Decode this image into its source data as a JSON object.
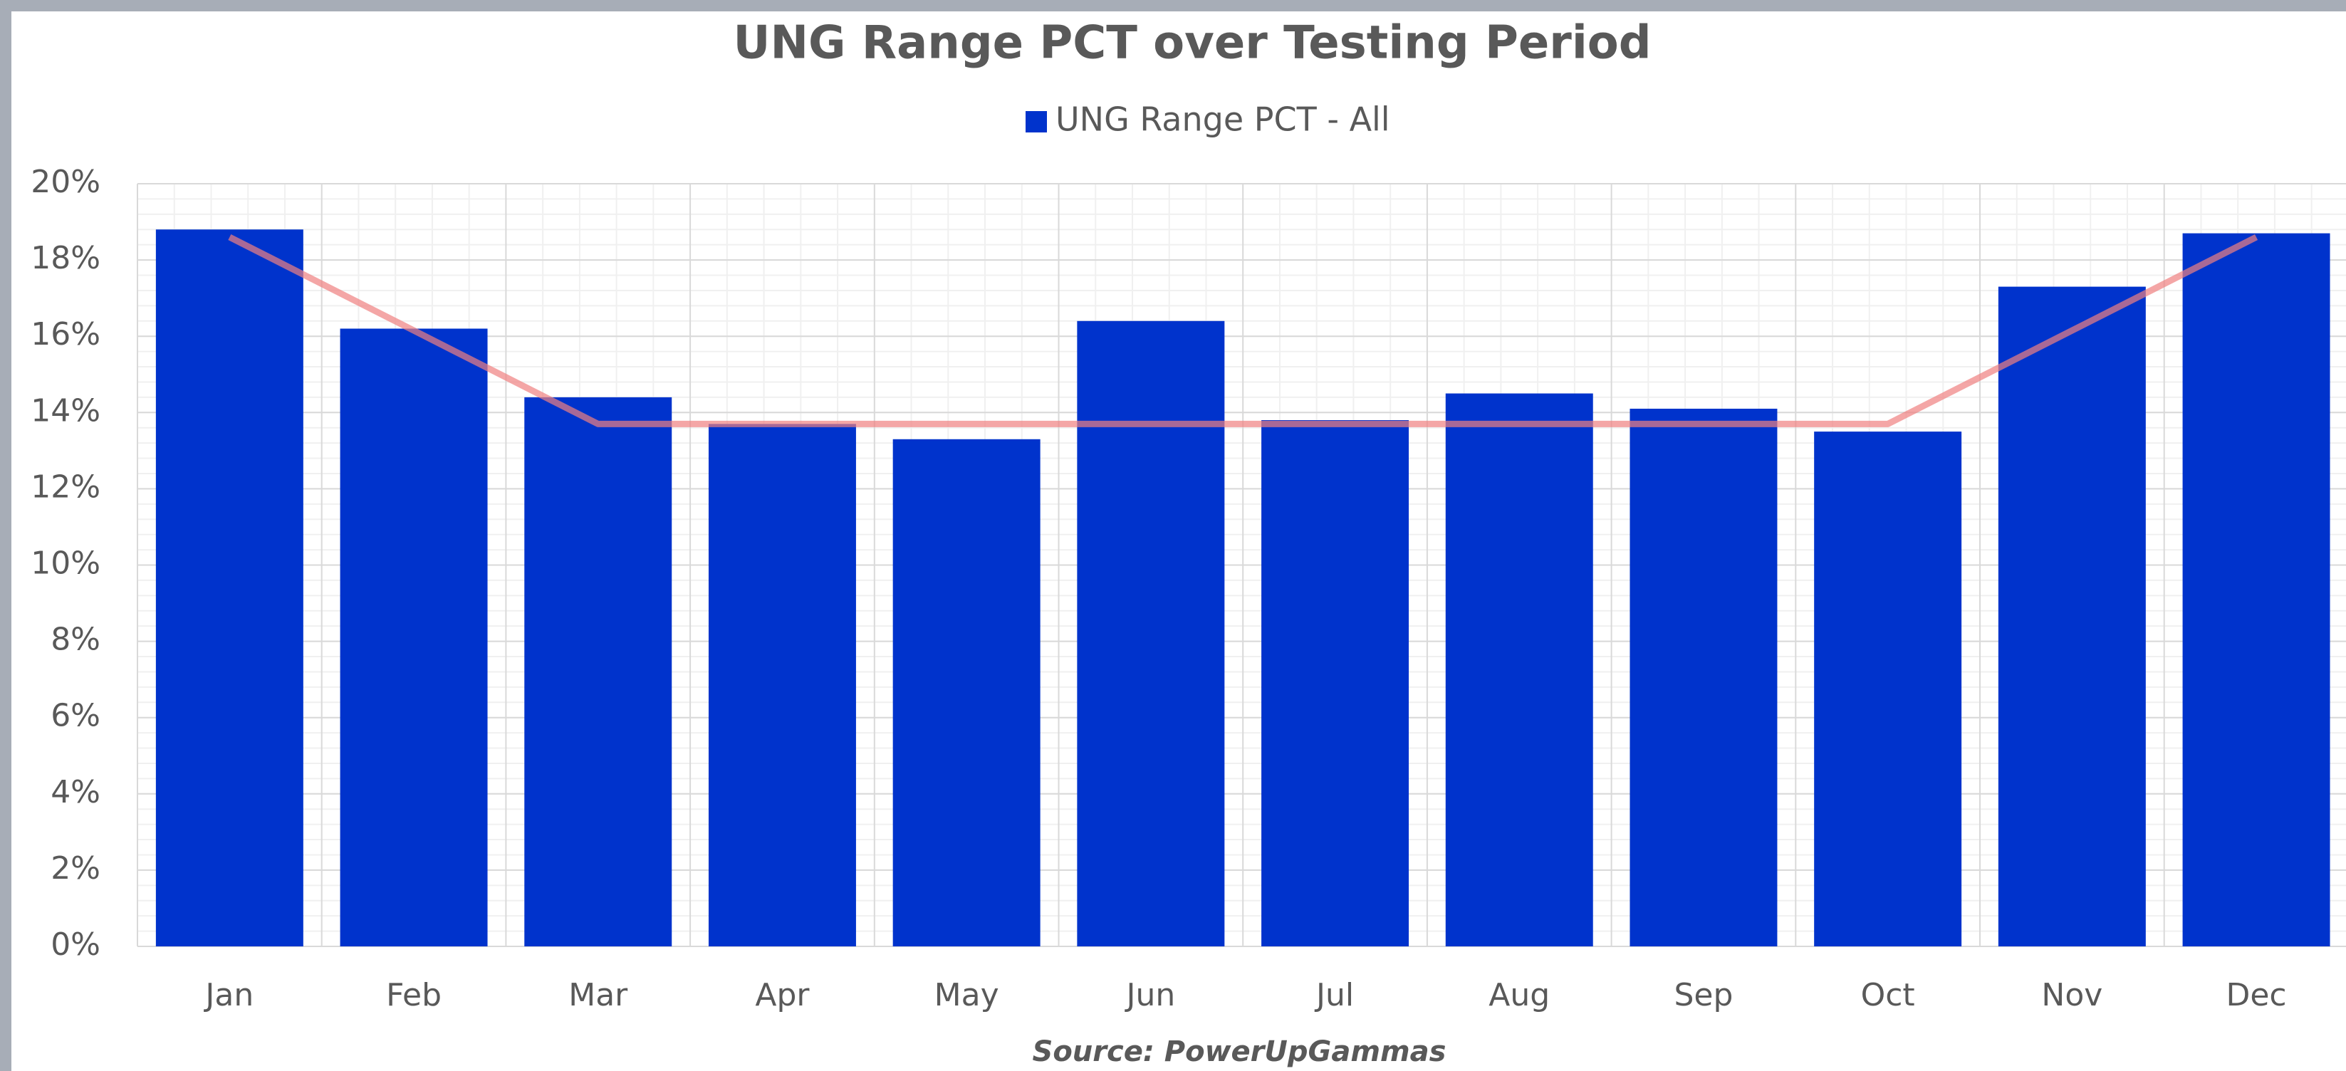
{
  "chart_data": {
    "type": "bar",
    "title": "UNG Range PCT over Testing Period",
    "source": "Source: PowerUpGammas",
    "categories": [
      "Jan",
      "Feb",
      "Mar",
      "Apr",
      "May",
      "Jun",
      "Jul",
      "Aug",
      "Sep",
      "Oct",
      "Nov",
      "Dec"
    ],
    "series": [
      {
        "name": "UNG Range PCT - All",
        "type": "bar",
        "color": "#0033cc",
        "values": [
          18.8,
          16.2,
          14.4,
          13.7,
          13.3,
          16.4,
          13.8,
          14.5,
          14.1,
          13.5,
          17.3,
          18.7
        ]
      },
      {
        "type": "line",
        "color": "#f08080",
        "values": [
          18.6,
          16.15,
          13.7,
          13.7,
          13.7,
          13.7,
          13.7,
          13.7,
          13.7,
          13.7,
          16.15,
          18.6
        ]
      }
    ],
    "ylim": [
      0,
      20
    ],
    "yticks": [
      {
        "value": 0,
        "label": "0%"
      },
      {
        "value": 2,
        "label": "2%"
      },
      {
        "value": 4,
        "label": "4%"
      },
      {
        "value": 6,
        "label": "6%"
      },
      {
        "value": 8,
        "label": "8%"
      },
      {
        "value": 10,
        "label": "10%"
      },
      {
        "value": 12,
        "label": "12%"
      },
      {
        "value": 14,
        "label": "14%"
      },
      {
        "value": 16,
        "label": "16%"
      },
      {
        "value": 18,
        "label": "18%"
      },
      {
        "value": 20,
        "label": "20%"
      }
    ],
    "grid": true,
    "legend": "top"
  }
}
